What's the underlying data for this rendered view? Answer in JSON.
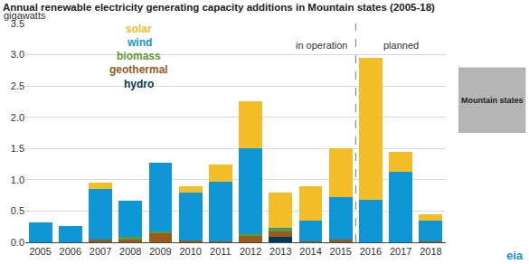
{
  "chart_data": {
    "type": "bar",
    "title": "Annual renewable electricity generating capacity additions in Mountain states (2005-18)",
    "subtitle": "gigawatts",
    "stacked": true,
    "grid": true,
    "legend": "top left",
    "categories": [
      "2005",
      "2006",
      "2007",
      "2008",
      "2009",
      "2010",
      "2011",
      "2012",
      "2013",
      "2014",
      "2015",
      "2016",
      "2017",
      "2018"
    ],
    "series": [
      {
        "name": "solar",
        "color": "#f2bd26",
        "values": [
          0,
          0,
          0.1,
          0,
          0.01,
          0.1,
          0.27,
          0.75,
          0.57,
          0.55,
          0.78,
          2.27,
          0.32,
          0.1
        ]
      },
      {
        "name": "wind",
        "color": "#0f96d6",
        "values": [
          0.32,
          0.26,
          0.8,
          0.58,
          1.1,
          0.77,
          0.95,
          1.37,
          0.02,
          0.33,
          0.67,
          0.68,
          1.13,
          0.33
        ]
      },
      {
        "name": "biomass",
        "color": "#5f9a32",
        "values": [
          0,
          0,
          0,
          0.03,
          0.02,
          0,
          0,
          0.03,
          0.03,
          0,
          0,
          0,
          0,
          0
        ]
      },
      {
        "name": "geothermal",
        "color": "#9a5a1e",
        "values": [
          0,
          0,
          0.05,
          0.05,
          0.15,
          0.03,
          0.02,
          0.1,
          0.1,
          0.02,
          0.05,
          0,
          0,
          0.02
        ]
      },
      {
        "name": "hydro",
        "color": "#003953",
        "values": [
          0,
          0,
          0,
          0,
          0,
          0,
          0,
          0,
          0.08,
          0,
          0,
          0,
          0,
          0
        ]
      }
    ],
    "ylim": [
      0,
      3.5
    ],
    "yticks": [
      {
        "value": 0,
        "label": "0.0"
      },
      0.5,
      {
        "value": 1,
        "label": "1.0"
      },
      1.5,
      {
        "value": 2,
        "label": "2.0"
      },
      2.5,
      {
        "value": 3,
        "label": "3.0"
      },
      3.5
    ],
    "annotations": [
      {
        "text": "in operation",
        "categories": [
          "2005",
          "2015"
        ]
      },
      {
        "text": "planned",
        "categories": [
          "2016",
          "2018"
        ]
      },
      {
        "text": "Mountain states"
      },
      {
        "text": "eia"
      }
    ]
  }
}
